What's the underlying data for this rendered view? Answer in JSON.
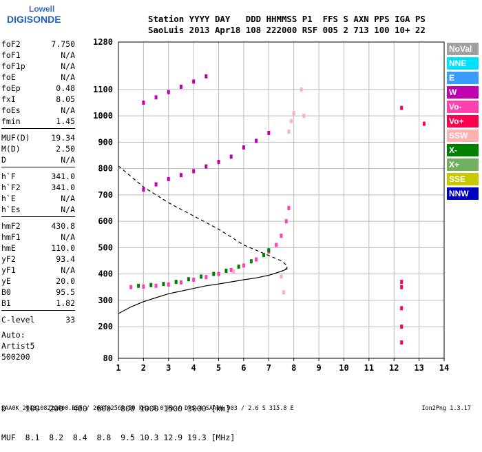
{
  "logo": {
    "line1": "Lowell",
    "line2": "DIGISONDE"
  },
  "header": {
    "row1": "Station YYYY DAY   DDD HHMMSS P1  FFS S AXN PPS IGA PS",
    "row2": "SaoLuis 2013 Apr18 108 222000 RSF 005 2 713 100 10+ 22"
  },
  "params_groups": [
    [
      {
        "name": "foF2",
        "value": "7.750"
      },
      {
        "name": "foF1",
        "value": "N/A"
      },
      {
        "name": "foF1p",
        "value": "N/A"
      },
      {
        "name": "foE",
        "value": "N/A"
      },
      {
        "name": "foEp",
        "value": "0.48"
      },
      {
        "name": "fxI",
        "value": "8.05"
      },
      {
        "name": "foEs",
        "value": "N/A"
      },
      {
        "name": "fmin",
        "value": "1.45"
      }
    ],
    [
      {
        "name": "MUF(D)",
        "value": "19.34"
      },
      {
        "name": "M(D)",
        "value": "2.50"
      },
      {
        "name": "D",
        "value": "N/A"
      }
    ],
    [
      {
        "name": "h`F",
        "value": "341.0"
      },
      {
        "name": "h`F2",
        "value": "341.0"
      },
      {
        "name": "h`E",
        "value": "N/A"
      },
      {
        "name": "h`Es",
        "value": "N/A"
      }
    ],
    [
      {
        "name": "hmF2",
        "value": "430.8"
      },
      {
        "name": "hmF1",
        "value": "N/A"
      },
      {
        "name": "hmE",
        "value": "110.0"
      },
      {
        "name": "yF2",
        "value": "93.4"
      },
      {
        "name": "yF1",
        "value": "N/A"
      },
      {
        "name": "yE",
        "value": "20.0"
      },
      {
        "name": "B0",
        "value": "95.5"
      },
      {
        "name": "B1",
        "value": "1.82"
      }
    ],
    [
      {
        "name": "C-level",
        "value": "33"
      }
    ]
  ],
  "auto": {
    "label": "Auto:",
    "name": "Artist5",
    "code": "500200"
  },
  "d_table": {
    "d_label": "D",
    "d_values": [
      "100",
      "200",
      "400",
      "600",
      "800",
      "1000",
      "1500",
      "3000"
    ],
    "d_unit": "[km]",
    "muf_label": "MUF",
    "muf_values": [
      "8.1",
      "8.2",
      "8.4",
      "8.8",
      "9.5",
      "10.3",
      "12.9",
      "19.3"
    ],
    "muf_unit": "[MHz]"
  },
  "footer": "SAA0K_2013108222000.RSF / 260fx256h 50 kHz 5.0 km / DPS-4 SAA0K 903 / 2.6 S 315.8 E",
  "footer_right": "Ion2Png 1.3.17",
  "legend": [
    {
      "label": "NoVal",
      "color": "#a0a0a0"
    },
    {
      "label": "NNE",
      "color": "#00e0ff"
    },
    {
      "label": "E",
      "color": "#3a9bff"
    },
    {
      "label": "W",
      "color": "#c000b0"
    },
    {
      "label": "Vo-",
      "color": "#ff40b0"
    },
    {
      "label": "Vo+",
      "color": "#ff0050"
    },
    {
      "label": "SSW",
      "color": "#ffb0b0"
    },
    {
      "label": "X-",
      "color": "#008000"
    },
    {
      "label": "X+",
      "color": "#70b060"
    },
    {
      "label": "SSE",
      "color": "#c8c800"
    },
    {
      "label": "NNW",
      "color": "#0000c0"
    }
  ],
  "chart_data": {
    "type": "scatter",
    "xlabel": "",
    "ylabel": "",
    "x_unit": "MHz",
    "y_unit": "km",
    "xlim": [
      1,
      14
    ],
    "ylim": [
      80,
      1280
    ],
    "x_ticks": [
      1,
      2,
      3,
      4,
      5,
      6,
      7,
      8,
      9,
      10,
      11,
      12,
      13,
      14
    ],
    "y_ticks": [
      80,
      200,
      300,
      400,
      500,
      600,
      700,
      800,
      900,
      1000,
      1100,
      1280
    ],
    "grid": true,
    "series": [
      {
        "name": "Vo-",
        "color": "#ff40b0",
        "points": [
          [
            1.5,
            350
          ],
          [
            2,
            352
          ],
          [
            2.5,
            355
          ],
          [
            3,
            360
          ],
          [
            3.5,
            368
          ],
          [
            4,
            378
          ],
          [
            4.5,
            388
          ],
          [
            5,
            400
          ],
          [
            5.5,
            415
          ],
          [
            6,
            432
          ],
          [
            6.5,
            455
          ],
          [
            7,
            485
          ],
          [
            7.3,
            510
          ],
          [
            7.5,
            545
          ],
          [
            7.7,
            600
          ],
          [
            7.8,
            650
          ]
        ]
      },
      {
        "name": "X-",
        "color": "#008000",
        "points": [
          [
            1.8,
            355
          ],
          [
            2.3,
            358
          ],
          [
            2.8,
            362
          ],
          [
            3.3,
            370
          ],
          [
            3.8,
            380
          ],
          [
            4.3,
            390
          ],
          [
            4.8,
            400
          ],
          [
            5.3,
            412
          ],
          [
            5.8,
            428
          ],
          [
            6.3,
            448
          ],
          [
            6.8,
            472
          ],
          [
            7,
            490
          ]
        ]
      },
      {
        "name": "W",
        "color": "#c000b0",
        "points": [
          [
            2,
            720
          ],
          [
            2.5,
            740
          ],
          [
            3,
            760
          ],
          [
            3.5,
            775
          ],
          [
            4,
            790
          ],
          [
            4.5,
            808
          ],
          [
            5,
            825
          ],
          [
            5.5,
            845
          ],
          [
            6,
            880
          ],
          [
            6.5,
            905
          ],
          [
            7,
            935
          ],
          [
            2,
            1050
          ],
          [
            2.5,
            1070
          ],
          [
            3,
            1090
          ],
          [
            3.5,
            1110
          ],
          [
            4,
            1130
          ],
          [
            4.5,
            1150
          ]
        ]
      },
      {
        "name": "SSW",
        "color": "#ffb0b0",
        "points": [
          [
            7.8,
            940
          ],
          [
            7.9,
            980
          ],
          [
            8,
            1010
          ],
          [
            8.3,
            1100
          ],
          [
            8.4,
            1000
          ],
          [
            5.6,
            410
          ],
          [
            7.5,
            390
          ],
          [
            7.6,
            330
          ]
        ]
      },
      {
        "name": "Vo+",
        "color": "#ff0050",
        "points": [
          [
            12.3,
            140
          ],
          [
            12.3,
            200
          ],
          [
            12.3,
            270
          ],
          [
            12.3,
            350
          ],
          [
            12.3,
            370
          ],
          [
            12.3,
            1030
          ],
          [
            13.2,
            970
          ]
        ]
      }
    ],
    "curves": [
      {
        "name": "profile_solid",
        "style": "solid",
        "points": [
          [
            1,
            250
          ],
          [
            1.5,
            275
          ],
          [
            2,
            295
          ],
          [
            2.5,
            310
          ],
          [
            3,
            325
          ],
          [
            3.5,
            335
          ],
          [
            4,
            345
          ],
          [
            4.5,
            355
          ],
          [
            5,
            362
          ],
          [
            5.5,
            370
          ],
          [
            6,
            378
          ],
          [
            6.5,
            385
          ],
          [
            7,
            395
          ],
          [
            7.5,
            410
          ],
          [
            7.75,
            420
          ]
        ]
      },
      {
        "name": "profile_dashed",
        "style": "dashed",
        "points": [
          [
            1,
            810
          ],
          [
            1.5,
            770
          ],
          [
            2,
            730
          ],
          [
            2.5,
            700
          ],
          [
            3,
            670
          ],
          [
            3.5,
            645
          ],
          [
            4,
            620
          ],
          [
            4.5,
            595
          ],
          [
            5,
            570
          ],
          [
            5.5,
            540
          ],
          [
            6,
            510
          ],
          [
            6.5,
            490
          ],
          [
            7,
            470
          ],
          [
            7.5,
            450
          ],
          [
            7.75,
            430
          ],
          [
            7.7,
            420
          ],
          [
            7.5,
            410
          ]
        ]
      }
    ]
  }
}
